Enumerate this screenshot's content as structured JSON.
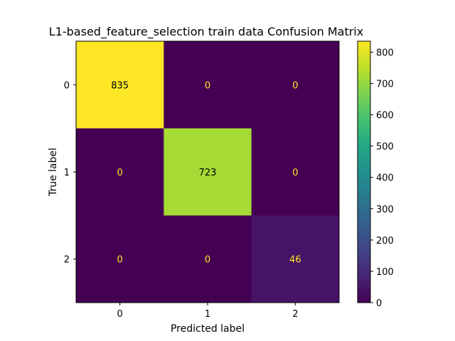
{
  "chart_data": {
    "type": "heatmap",
    "title": "L1-based_feature_selection train data Confusion Matrix",
    "xlabel": "Predicted label",
    "ylabel": "True label",
    "x_categories": [
      "0",
      "1",
      "2"
    ],
    "y_categories": [
      "0",
      "1",
      "2"
    ],
    "matrix": [
      [
        835,
        0,
        0
      ],
      [
        0,
        723,
        0
      ],
      [
        0,
        0,
        46
      ]
    ],
    "colormap": "viridis",
    "colorbar": {
      "min": 0,
      "max": 835,
      "ticks": [
        0,
        100,
        200,
        300,
        400,
        500,
        600,
        700,
        800
      ]
    },
    "text_color_low": "#fde725",
    "text_color_high": "#000000"
  }
}
